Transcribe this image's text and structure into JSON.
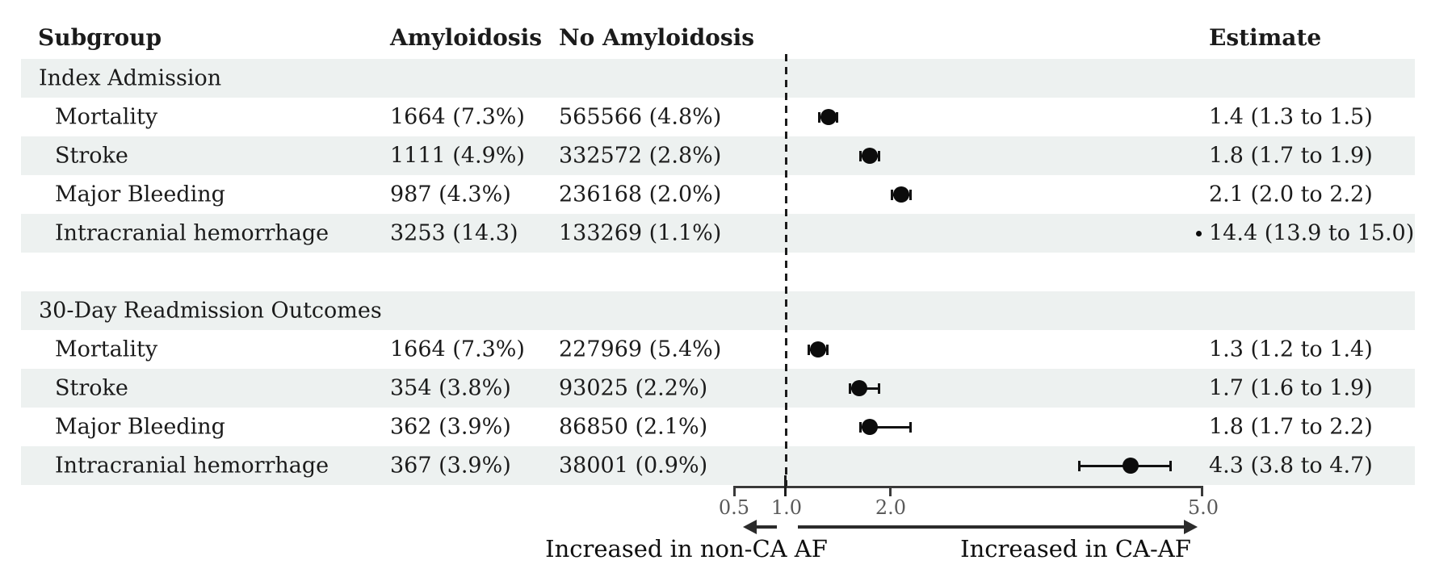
{
  "chart_data": {
    "type": "forest",
    "columns": [
      "Subgroup",
      "Amyloidosis",
      "No Amyloidosis",
      "Estimate"
    ],
    "x_axis": {
      "scale": "linear",
      "min": 0.5,
      "max": 5.0,
      "ticks": [
        0.5,
        1.0,
        2.0,
        5.0
      ],
      "tick_labels": [
        "0.5",
        "1.0",
        "2.0",
        "5.0"
      ],
      "reference_line": 1.0
    },
    "rows": [
      {
        "kind": "section",
        "label": "Index Admission"
      },
      {
        "kind": "data",
        "label": "Mortality",
        "amyloidosis": "1664 (7.3%)",
        "no_amyloidosis": "565566 (4.8%)",
        "estimate": 1.4,
        "ci_low": 1.3,
        "ci_high": 1.5,
        "estimate_label": "1.4 (1.3 to 1.5)"
      },
      {
        "kind": "data",
        "label": "Stroke",
        "amyloidosis": "1111 (4.9%)",
        "no_amyloidosis": "332572 (2.8%)",
        "estimate": 1.8,
        "ci_low": 1.7,
        "ci_high": 1.9,
        "estimate_label": "1.8 (1.7 to 1.9)"
      },
      {
        "kind": "data",
        "label": "Major Bleeding",
        "amyloidosis": "987 (4.3%)",
        "no_amyloidosis": "236168 (2.0%)",
        "estimate": 2.1,
        "ci_low": 2.0,
        "ci_high": 2.2,
        "estimate_label": "2.1 (2.0 to 2.2)"
      },
      {
        "kind": "data",
        "label": "Intracranial hemorrhage",
        "amyloidosis": "3253 (14.3)",
        "no_amyloidosis": "133269 (1.1%)",
        "estimate": 14.4,
        "ci_low": 13.9,
        "ci_high": 15.0,
        "estimate_label": "14.4 (13.9 to 15.0)",
        "off_scale": true
      },
      {
        "kind": "spacer",
        "label": ""
      },
      {
        "kind": "section",
        "label": "30-Day Readmission Outcomes"
      },
      {
        "kind": "data",
        "label": "Mortality",
        "amyloidosis": "1664 (7.3%)",
        "no_amyloidosis": "227969 (5.4%)",
        "estimate": 1.3,
        "ci_low": 1.2,
        "ci_high": 1.4,
        "estimate_label": "1.3 (1.2 to 1.4)"
      },
      {
        "kind": "data",
        "label": "Stroke",
        "amyloidosis": "354 (3.8%)",
        "no_amyloidosis": "93025 (2.2%)",
        "estimate": 1.7,
        "ci_low": 1.6,
        "ci_high": 1.9,
        "estimate_label": "1.7 (1.6 to 1.9)"
      },
      {
        "kind": "data",
        "label": "Major Bleeding",
        "amyloidosis": "362 (3.9%)",
        "no_amyloidosis": "86850 (2.1%)",
        "estimate": 1.8,
        "ci_low": 1.7,
        "ci_high": 2.2,
        "estimate_label": "1.8 (1.7 to 2.2)"
      },
      {
        "kind": "data",
        "label": "Intracranial hemorrhage",
        "amyloidosis": "367 (3.9%)",
        "no_amyloidosis": "38001 (0.9%)",
        "estimate": 4.3,
        "ci_low": 3.8,
        "ci_high": 4.7,
        "estimate_label": "4.3 (3.8 to 4.7)"
      }
    ],
    "footer_left": "Increased in non-CA AF",
    "footer_right": "Increased in CA-AF",
    "legend_position": "none",
    "grid": false
  },
  "colors": {
    "row_band": "#edf1f0",
    "marker": "#0c0c0c",
    "axis": "#3a3a3a",
    "tick_label": "#5a5a5a",
    "text": "#1b1b1b"
  }
}
